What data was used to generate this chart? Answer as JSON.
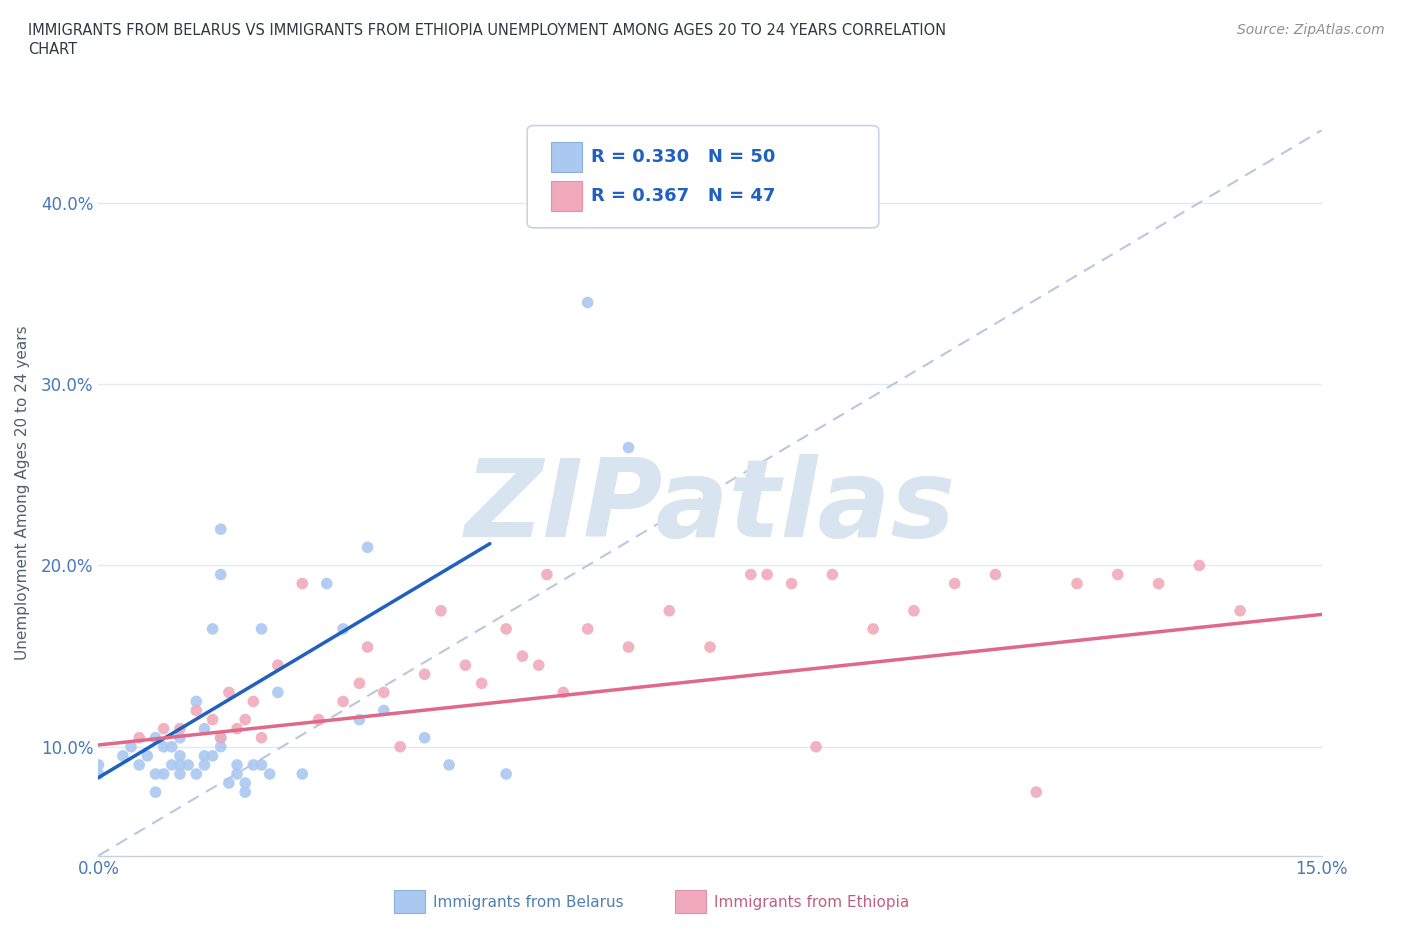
{
  "title_line1": "IMMIGRANTS FROM BELARUS VS IMMIGRANTS FROM ETHIOPIA UNEMPLOYMENT AMONG AGES 20 TO 24 YEARS CORRELATION",
  "title_line2": "CHART",
  "source": "Source: ZipAtlas.com",
  "ylabel": "Unemployment Among Ages 20 to 24 years",
  "xlim": [
    0.0,
    0.15
  ],
  "ylim": [
    0.04,
    0.44
  ],
  "xticks": [
    0.0,
    0.03,
    0.06,
    0.09,
    0.12,
    0.15
  ],
  "xticklabels": [
    "0.0%",
    "",
    "",
    "",
    "",
    "15.0%"
  ],
  "yticks": [
    0.1,
    0.2,
    0.3,
    0.4
  ],
  "yticklabels": [
    "10.0%",
    "20.0%",
    "30.0%",
    "40.0%"
  ],
  "belarus_color": "#aac8f0",
  "ethiopia_color": "#f0aabb",
  "belarus_line_color": "#2060c0",
  "ethiopia_line_color": "#e06888",
  "diagonal_color": "#b8c8e0",
  "watermark_color": "#d8e4f0",
  "legend_R_color": "#2060c0",
  "legend_N_color": "#2060c0",
  "background_color": "#ffffff",
  "grid_color": "#e4e8f0",
  "ytick_color": "#4878b8",
  "xtick_color": "#4878b8",
  "ylabel_color": "#506070",
  "belarus_scatter_x": [
    0.0,
    0.0,
    0.003,
    0.004,
    0.005,
    0.006,
    0.007,
    0.007,
    0.007,
    0.008,
    0.008,
    0.009,
    0.009,
    0.01,
    0.01,
    0.01,
    0.01,
    0.011,
    0.012,
    0.012,
    0.013,
    0.013,
    0.013,
    0.014,
    0.014,
    0.015,
    0.015,
    0.015,
    0.015,
    0.016,
    0.017,
    0.017,
    0.018,
    0.018,
    0.019,
    0.02,
    0.02,
    0.021,
    0.022,
    0.025,
    0.028,
    0.03,
    0.032,
    0.033,
    0.035,
    0.04,
    0.043,
    0.05,
    0.06,
    0.065
  ],
  "belarus_scatter_y": [
    0.09,
    0.085,
    0.095,
    0.1,
    0.09,
    0.095,
    0.105,
    0.085,
    0.075,
    0.1,
    0.085,
    0.09,
    0.1,
    0.085,
    0.09,
    0.095,
    0.105,
    0.09,
    0.125,
    0.085,
    0.09,
    0.095,
    0.11,
    0.095,
    0.165,
    0.1,
    0.105,
    0.195,
    0.22,
    0.08,
    0.085,
    0.09,
    0.075,
    0.08,
    0.09,
    0.09,
    0.165,
    0.085,
    0.13,
    0.085,
    0.19,
    0.165,
    0.115,
    0.21,
    0.12,
    0.105,
    0.09,
    0.085,
    0.345,
    0.265
  ],
  "ethiopia_scatter_x": [
    0.005,
    0.008,
    0.01,
    0.012,
    0.014,
    0.015,
    0.016,
    0.017,
    0.018,
    0.019,
    0.02,
    0.022,
    0.025,
    0.027,
    0.03,
    0.032,
    0.033,
    0.035,
    0.037,
    0.04,
    0.042,
    0.045,
    0.047,
    0.05,
    0.052,
    0.054,
    0.055,
    0.057,
    0.06,
    0.065,
    0.07,
    0.075,
    0.08,
    0.082,
    0.085,
    0.088,
    0.09,
    0.095,
    0.1,
    0.105,
    0.11,
    0.115,
    0.12,
    0.125,
    0.13,
    0.135,
    0.14
  ],
  "ethiopia_scatter_y": [
    0.105,
    0.11,
    0.11,
    0.12,
    0.115,
    0.105,
    0.13,
    0.11,
    0.115,
    0.125,
    0.105,
    0.145,
    0.19,
    0.115,
    0.125,
    0.135,
    0.155,
    0.13,
    0.1,
    0.14,
    0.175,
    0.145,
    0.135,
    0.165,
    0.15,
    0.145,
    0.195,
    0.13,
    0.165,
    0.155,
    0.175,
    0.155,
    0.195,
    0.195,
    0.19,
    0.1,
    0.195,
    0.165,
    0.175,
    0.19,
    0.195,
    0.075,
    0.19,
    0.195,
    0.19,
    0.2,
    0.175
  ],
  "belarus_line_x": [
    0.0,
    0.048
  ],
  "belarus_line_y": [
    0.083,
    0.212
  ],
  "ethiopia_line_x": [
    0.0,
    0.15
  ],
  "ethiopia_line_y": [
    0.101,
    0.173
  ]
}
